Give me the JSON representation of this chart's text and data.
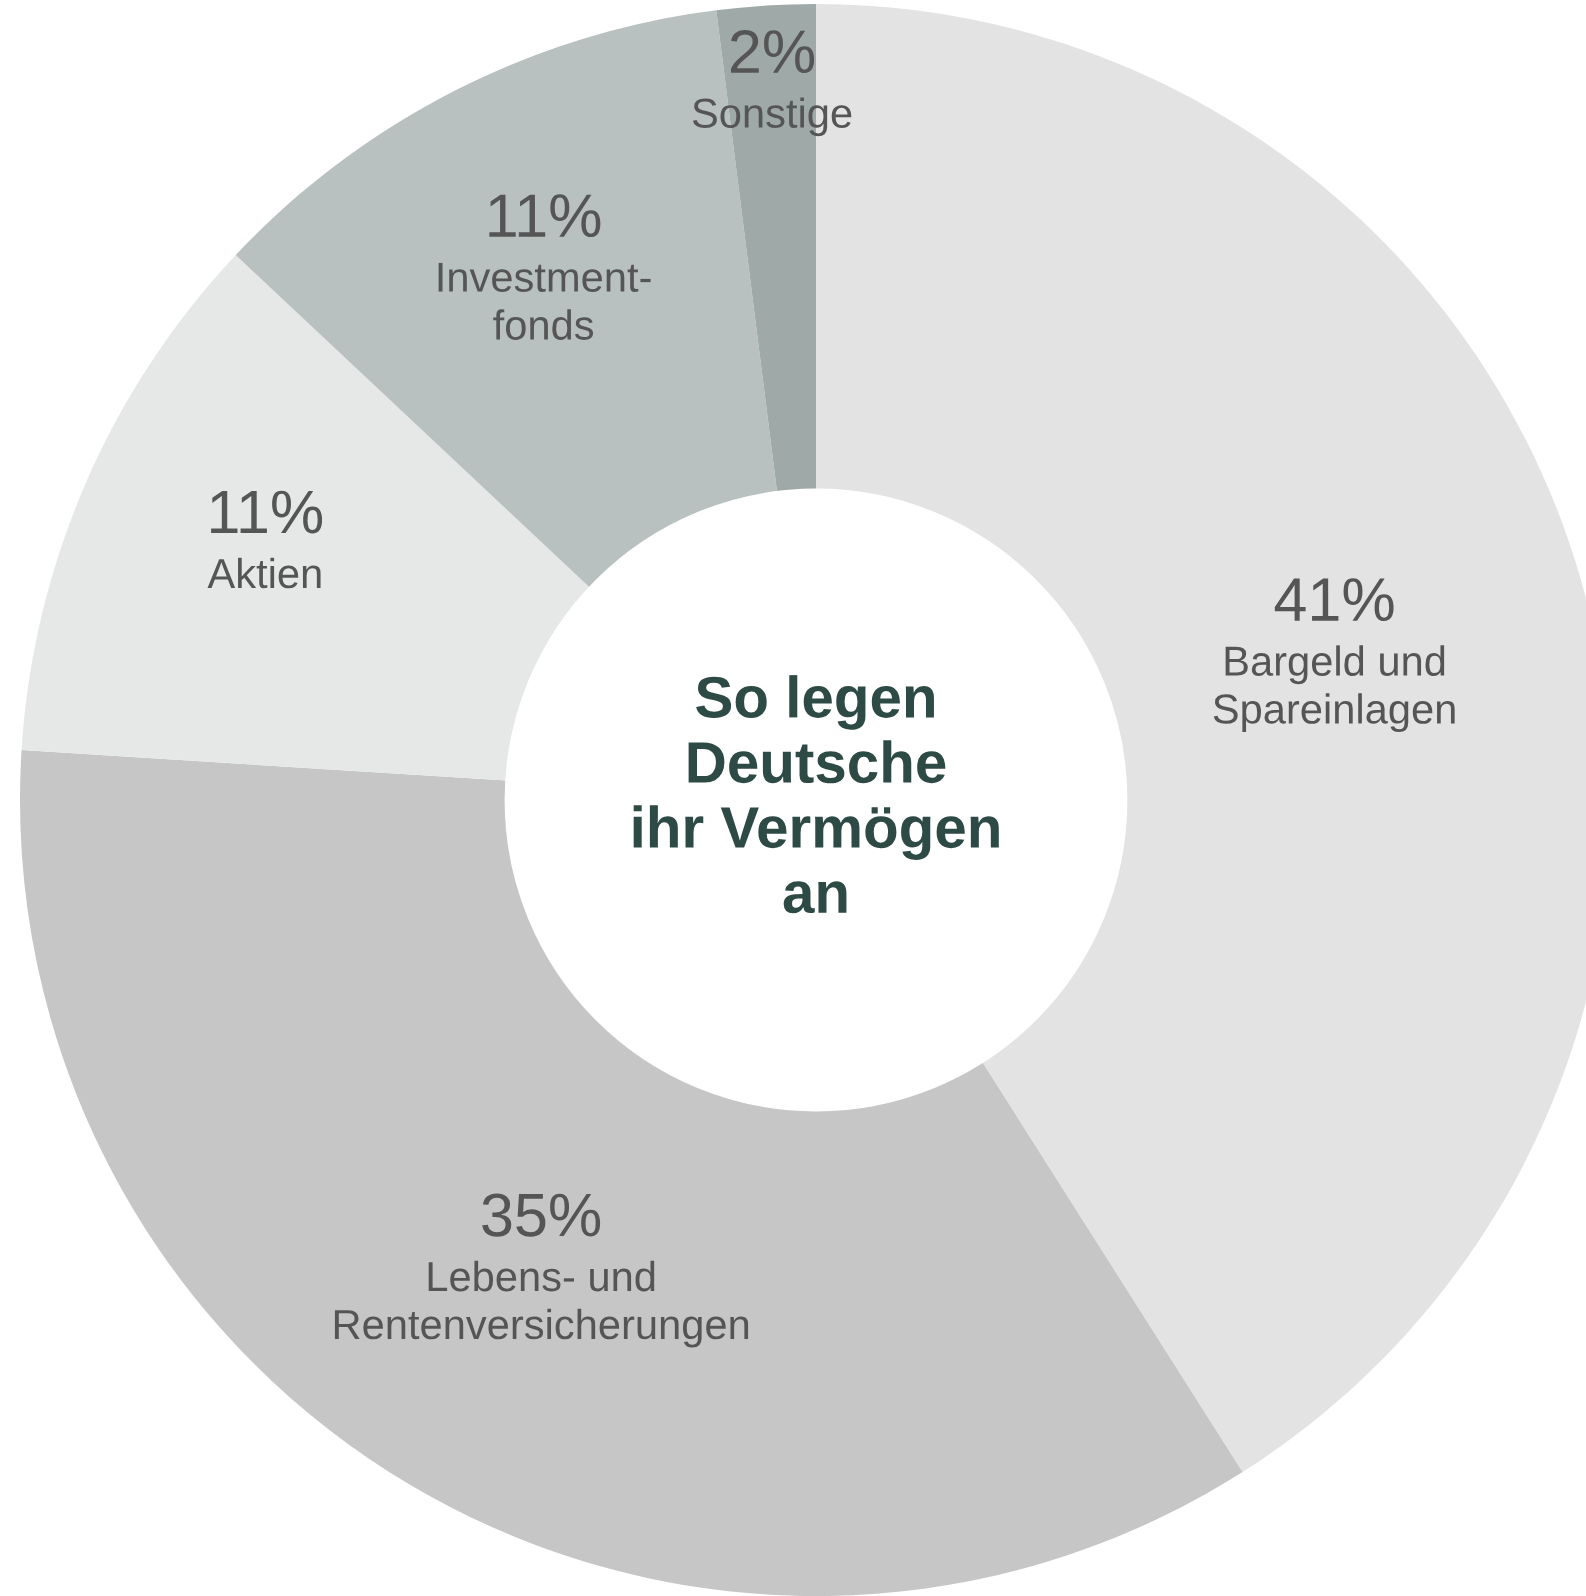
{
  "chart_data": {
    "type": "donut",
    "title": "So legen\nDeutsche\nihr Vermögen\nan",
    "categories": [
      "Bargeld und\nSpareinlagen",
      "Lebens- und\nRentenversicherungen",
      "Aktien",
      "Investment-\nfonds",
      "Sonstige"
    ],
    "values": [
      41,
      35,
      11,
      11,
      2
    ],
    "value_labels": [
      "41%",
      "35%",
      "11%",
      "11%",
      "2%"
    ],
    "colors": [
      "#e3e3e3",
      "#c6c6c6",
      "#e6e8e8",
      "#b8c1bf",
      "#9fa9a7"
    ],
    "legend": false
  }
}
